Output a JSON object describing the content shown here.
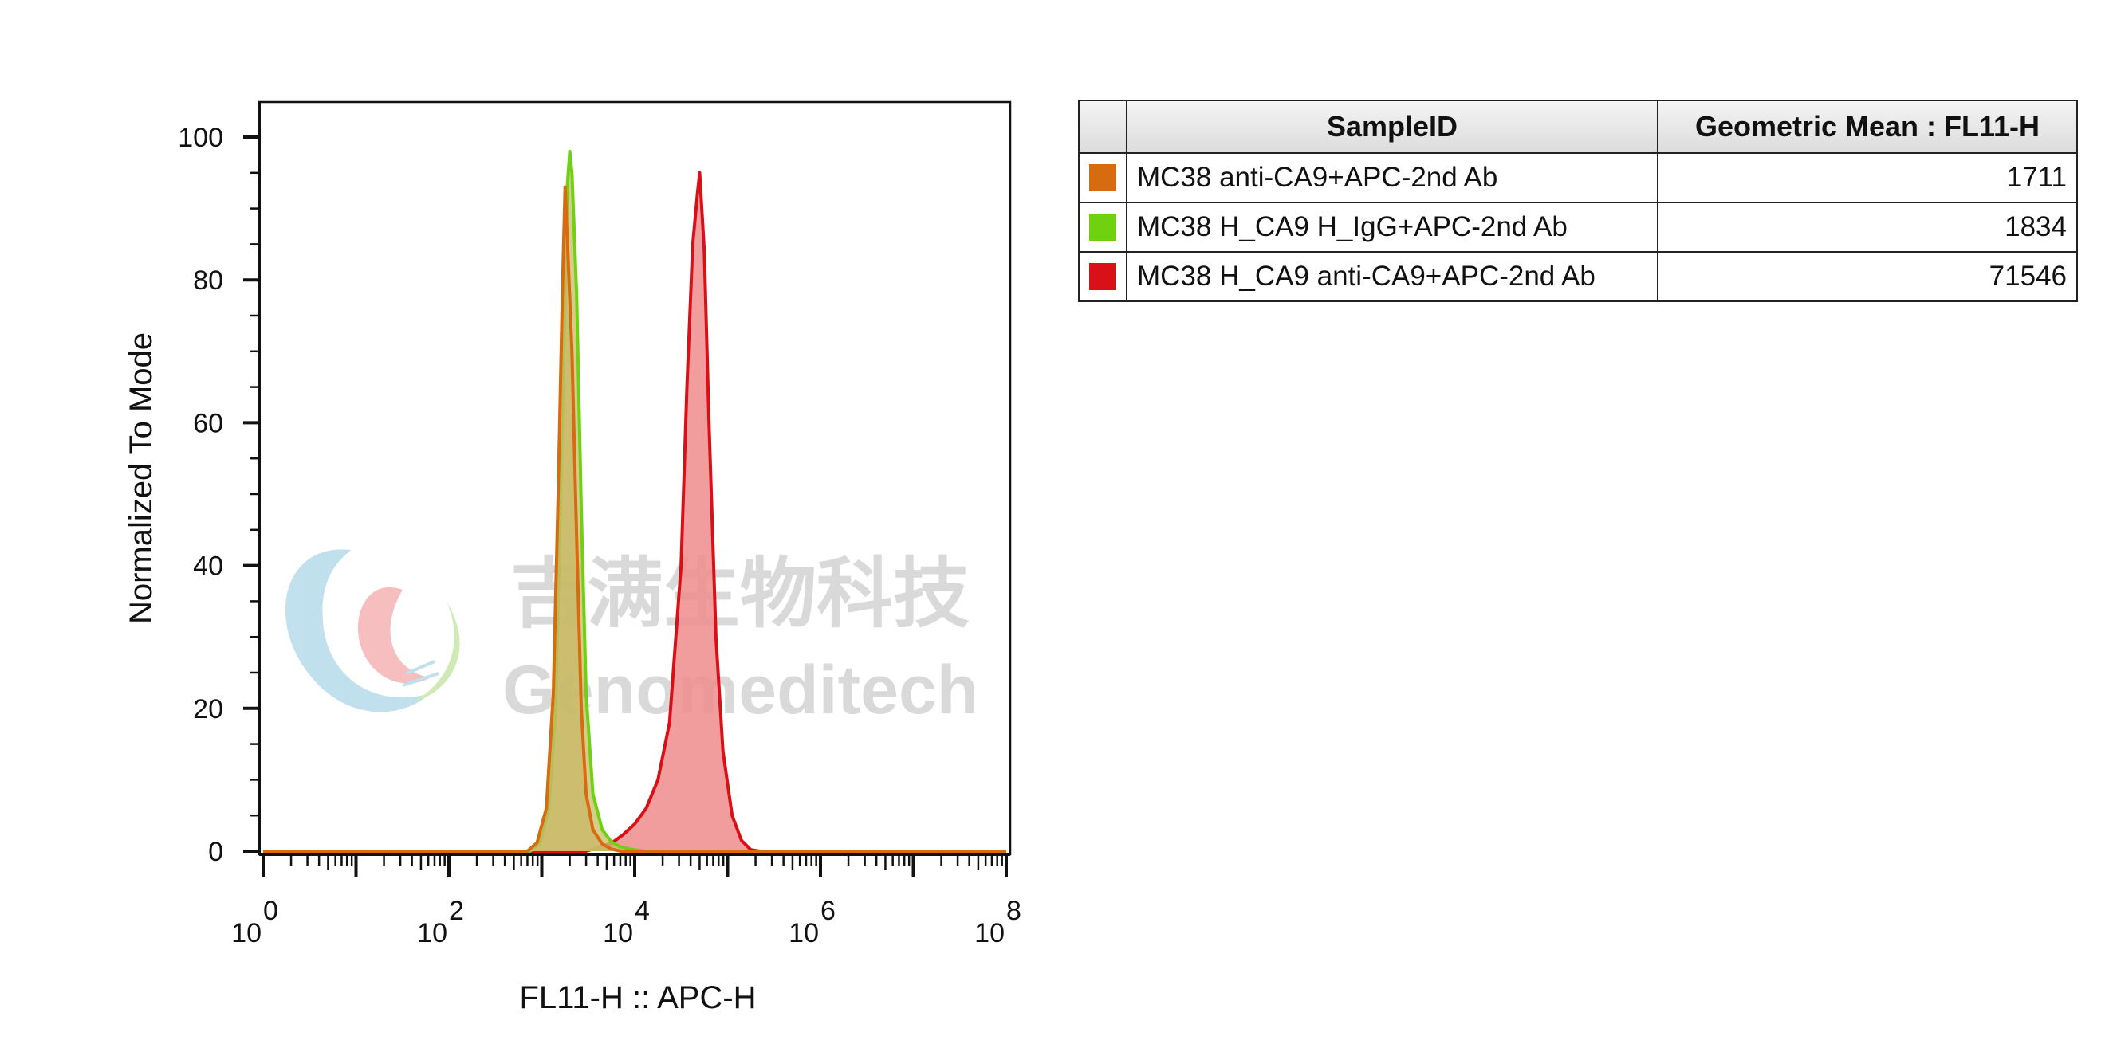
{
  "chart_data": {
    "type": "histogram",
    "xlabel": "FL11-H :: APC-H",
    "ylabel": "Normalized To Mode",
    "x_scale": "log",
    "xlim": [
      1,
      100000000
    ],
    "ylim": [
      0,
      100
    ],
    "x_tick_labels": [
      {
        "base": "10",
        "exp": "0",
        "value": 1
      },
      {
        "base": "10",
        "exp": "2",
        "value": 100
      },
      {
        "base": "10",
        "exp": "4",
        "value": 10000
      },
      {
        "base": "10",
        "exp": "6",
        "value": 1000000
      },
      {
        "base": "10",
        "exp": "8",
        "value": 100000000
      }
    ],
    "y_ticks": [
      0,
      20,
      40,
      60,
      80,
      100
    ],
    "series": [
      {
        "name": "MC38 H_CA9 anti-CA9+APC-2nd Ab",
        "color": "#d91018",
        "fill": "#ee8c8c",
        "points": [
          [
            1,
            0
          ],
          [
            3000,
            0
          ],
          [
            4200,
            0.6
          ],
          [
            5600,
            1.1
          ],
          [
            7500,
            2.3
          ],
          [
            10000,
            3.8
          ],
          [
            13300,
            6
          ],
          [
            17800,
            10
          ],
          [
            23700,
            18
          ],
          [
            31600,
            40
          ],
          [
            36500,
            65
          ],
          [
            42200,
            85
          ],
          [
            47300,
            92
          ],
          [
            50100,
            95
          ],
          [
            56200,
            84
          ],
          [
            63100,
            60
          ],
          [
            75000,
            30
          ],
          [
            89100,
            14
          ],
          [
            112000,
            5
          ],
          [
            141000,
            1.5
          ],
          [
            178000,
            0.2
          ],
          [
            224000,
            0
          ],
          [
            100000000,
            0
          ]
        ]
      },
      {
        "name": "MC38 H_CA9 H_IgG+APC-2nd Ab",
        "color": "#6fd110",
        "fill": "#c9c26f",
        "points": [
          [
            1,
            0
          ],
          [
            750,
            0
          ],
          [
            950,
            1
          ],
          [
            1190,
            6
          ],
          [
            1410,
            20
          ],
          [
            1580,
            48
          ],
          [
            1780,
            78
          ],
          [
            1880,
            93
          ],
          [
            2000,
            98
          ],
          [
            2110,
            95
          ],
          [
            2370,
            78
          ],
          [
            2660,
            48
          ],
          [
            3000,
            22
          ],
          [
            3550,
            8
          ],
          [
            4470,
            3
          ],
          [
            5620,
            1.3
          ],
          [
            7080,
            0.6
          ],
          [
            8910,
            0.3
          ],
          [
            12600,
            0
          ],
          [
            100000000,
            0
          ]
        ]
      },
      {
        "name": "MC38 anti-CA9+APC-2nd Ab",
        "color": "#d86a10",
        "fill": "#c9b968",
        "points": [
          [
            1,
            0
          ],
          [
            700,
            0
          ],
          [
            890,
            1.2
          ],
          [
            1120,
            6
          ],
          [
            1330,
            22
          ],
          [
            1500,
            50
          ],
          [
            1680,
            80
          ],
          [
            1780,
            93
          ],
          [
            1880,
            86
          ],
          [
            2110,
            70
          ],
          [
            2370,
            44
          ],
          [
            2660,
            20
          ],
          [
            3000,
            8
          ],
          [
            3550,
            3
          ],
          [
            4470,
            1
          ],
          [
            5620,
            0.3
          ],
          [
            7080,
            0
          ],
          [
            100000000,
            0
          ]
        ]
      }
    ],
    "legend_table": {
      "headers": [
        "SampleID",
        "Geometric Mean : FL11-H"
      ],
      "rows": [
        {
          "color": "#d86a10",
          "sample": "MC38 anti-CA9+APC-2nd Ab",
          "value": "1711"
        },
        {
          "color": "#6fd110",
          "sample": "MC38 H_CA9 H_IgG+APC-2nd Ab",
          "value": "1834"
        },
        {
          "color": "#d91018",
          "sample": "MC38 H_CA9 anti-CA9+APC-2nd Ab",
          "value": "71546"
        }
      ]
    }
  },
  "watermark": {
    "cn_text": "吉满生物科技",
    "en_text": "Genomeditech"
  }
}
